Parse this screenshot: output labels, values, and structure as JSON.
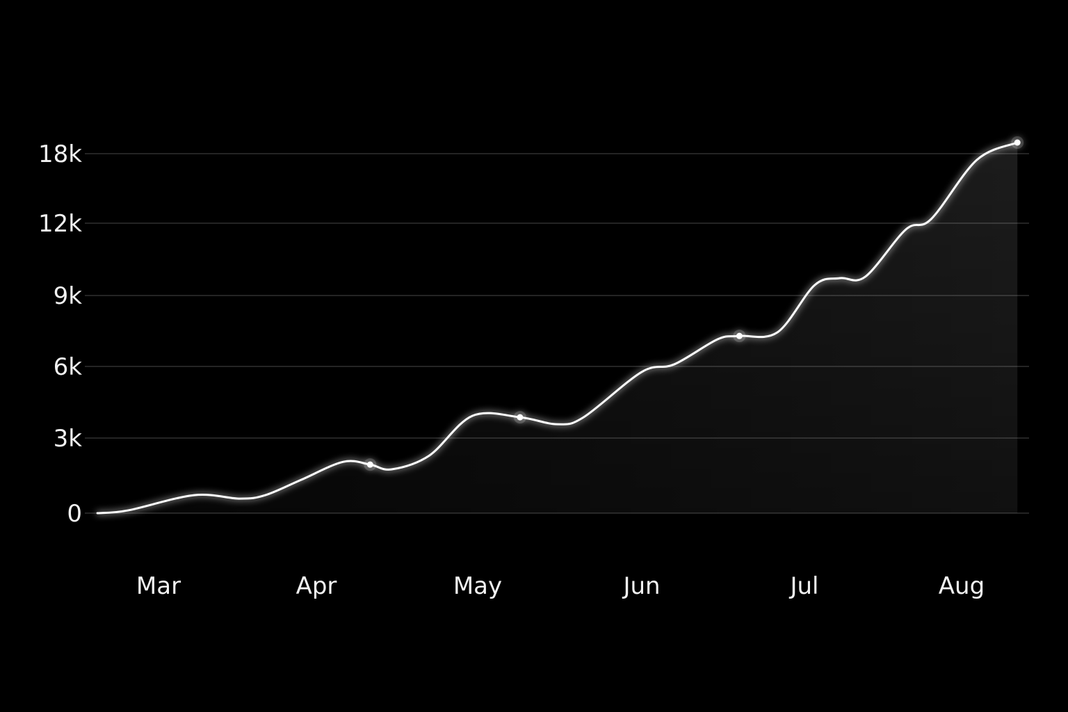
{
  "chart_data": {
    "type": "area",
    "title": "",
    "xlabel": "",
    "ylabel": "",
    "x_ticks": [
      {
        "label": "Mar",
        "date": "2024-03-01"
      },
      {
        "label": "Apr",
        "date": "2024-04-01"
      },
      {
        "label": "May",
        "date": "2024-05-01"
      },
      {
        "label": "Jun",
        "date": "2024-06-01"
      },
      {
        "label": "Jul",
        "date": "2024-07-01"
      },
      {
        "label": "Aug",
        "date": "2024-08-01"
      }
    ],
    "y_ticks": [
      {
        "label": "0",
        "value": 0
      },
      {
        "label": "3k",
        "value": 3000
      },
      {
        "label": "6k",
        "value": 6000
      },
      {
        "label": "9k",
        "value": 9000
      },
      {
        "label": "12k",
        "value": 12000
      },
      {
        "label": "18k",
        "value": 18000
      }
    ],
    "grid": true,
    "colors": {
      "background": "#000000",
      "line": "#ffffff",
      "grid": "#3a3a3a",
      "text": "#f2f2f2"
    },
    "series": [
      {
        "points": [
          {
            "x": "2024-02-18",
            "y": 0
          },
          {
            "x": "2024-02-24",
            "y": 110
          },
          {
            "x": "2024-03-08",
            "y": 720
          },
          {
            "x": "2024-03-17",
            "y": 580
          },
          {
            "x": "2024-03-22",
            "y": 720
          },
          {
            "x": "2024-03-29",
            "y": 1330
          },
          {
            "x": "2024-04-06",
            "y": 2050
          },
          {
            "x": "2024-04-11",
            "y": 1940,
            "highlight": true
          },
          {
            "x": "2024-04-15",
            "y": 1750
          },
          {
            "x": "2024-04-22",
            "y": 2300
          },
          {
            "x": "2024-04-30",
            "y": 3930
          },
          {
            "x": "2024-05-09",
            "y": 3870,
            "highlight": true
          },
          {
            "x": "2024-05-16",
            "y": 3580
          },
          {
            "x": "2024-05-21",
            "y": 3870
          },
          {
            "x": "2024-06-01",
            "y": 5770
          },
          {
            "x": "2024-06-07",
            "y": 6090
          },
          {
            "x": "2024-06-15",
            "y": 7150
          },
          {
            "x": "2024-06-19",
            "y": 7290,
            "highlight": true
          },
          {
            "x": "2024-06-26",
            "y": 7440
          },
          {
            "x": "2024-07-03",
            "y": 9430
          },
          {
            "x": "2024-07-08",
            "y": 9720
          },
          {
            "x": "2024-07-13",
            "y": 9780
          },
          {
            "x": "2024-07-21",
            "y": 11740
          },
          {
            "x": "2024-07-26",
            "y": 12360
          },
          {
            "x": "2024-08-04",
            "y": 17460
          },
          {
            "x": "2024-08-12",
            "y": 18960,
            "highlight": true
          }
        ]
      }
    ]
  }
}
